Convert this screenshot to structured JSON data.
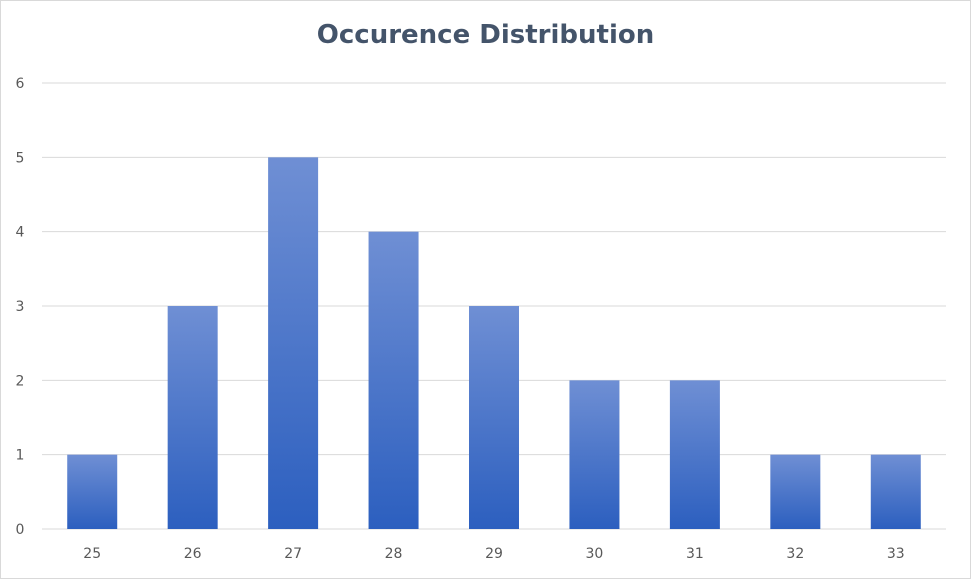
{
  "chart_data": {
    "type": "bar",
    "title": "Occurence Distribution",
    "xlabel": "",
    "ylabel": "",
    "categories": [
      "25",
      "26",
      "27",
      "28",
      "29",
      "30",
      "31",
      "32",
      "33"
    ],
    "values": [
      1,
      3,
      5,
      4,
      3,
      2,
      2,
      1,
      1
    ],
    "ylim": [
      0,
      6
    ],
    "yticks": [
      0,
      1,
      2,
      3,
      4,
      5,
      6
    ],
    "grid": true,
    "legend": "none",
    "colors": {
      "bar_top": "#6f8fd4",
      "bar_bottom": "#2c5fbf",
      "grid": "#d9d9d9",
      "title": "#44546a",
      "tick_text": "#595959"
    }
  }
}
